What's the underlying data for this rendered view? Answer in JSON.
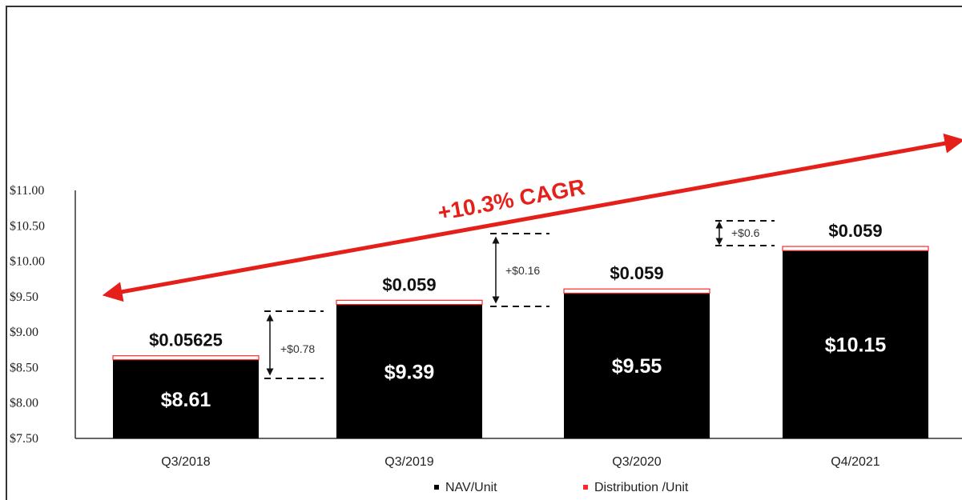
{
  "colors": {
    "bar": "#000000",
    "distribution": "#ff2a2a",
    "arrow": "#e5201b",
    "axis": "#333333"
  },
  "chart_data": {
    "type": "bar",
    "categories": [
      "Q3/2018",
      "Q3/2019",
      "Q3/2020",
      "Q4/2021"
    ],
    "series": [
      {
        "name": "NAV/Unit",
        "values": [
          8.61,
          9.39,
          9.55,
          10.15
        ],
        "value_labels": [
          "$8.61",
          "$9.39",
          "$9.55",
          "$10.15"
        ]
      },
      {
        "name": "Distribution /Unit",
        "values": [
          0.05625,
          0.059,
          0.059,
          0.059
        ],
        "value_labels": [
          "$0.05625",
          "$0.059",
          "$0.059",
          "$0.059"
        ]
      }
    ],
    "yticks": [
      "$7.50",
      "$8.00",
      "$8.50",
      "$9.00",
      "$9.50",
      "$10.00",
      "$10.50",
      "$11.00"
    ],
    "ylim": [
      7.5,
      11.0
    ],
    "increments": [
      "+$0.78",
      "+$0.16",
      "+$0.6"
    ],
    "annotation": "+10.3% CAGR",
    "legend": [
      "NAV/Unit",
      "Distribution /Unit"
    ],
    "legend_position": "bottom"
  }
}
